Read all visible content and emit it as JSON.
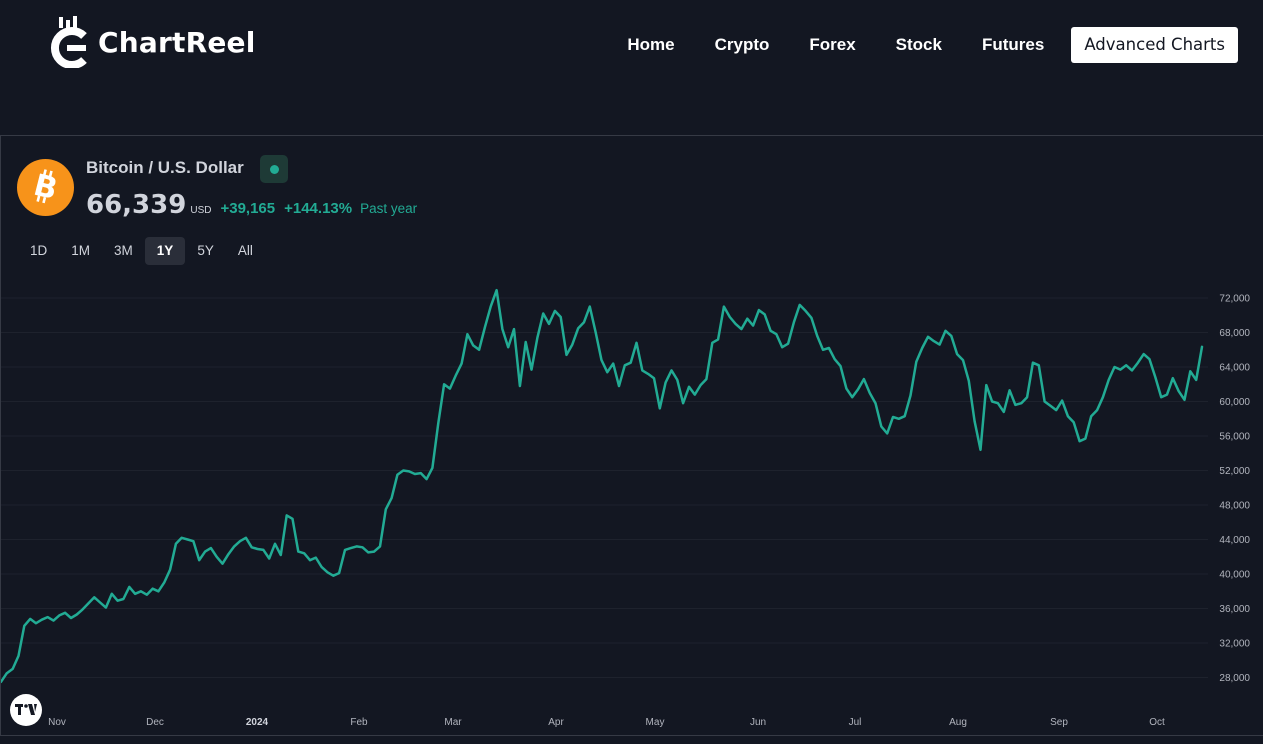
{
  "header": {
    "logo_text": "ChartReel",
    "nav": [
      {
        "label": "Home"
      },
      {
        "label": "Crypto"
      },
      {
        "label": "Forex"
      },
      {
        "label": "Stock"
      },
      {
        "label": "Futures"
      }
    ],
    "cta_label": "Advanced Charts"
  },
  "widget": {
    "symbol_title": "Bitcoin / U.S. Dollar",
    "coin_icon": "bitcoin-icon",
    "status": "market-open",
    "price": "66,339",
    "currency": "USD",
    "change": "+39,165",
    "change_pct": "+144.13%",
    "period": "Past year",
    "ranges": [
      {
        "label": "1D",
        "active": false
      },
      {
        "label": "1M",
        "active": false
      },
      {
        "label": "3M",
        "active": false
      },
      {
        "label": "1Y",
        "active": true
      },
      {
        "label": "5Y",
        "active": false
      },
      {
        "label": "All",
        "active": false
      }
    ],
    "accent_color": "#22ab94",
    "background_color": "#131722"
  },
  "chart_data": {
    "type": "line",
    "series": [
      {
        "values": [
          27500,
          28500,
          29000,
          30500,
          34000,
          34800,
          34300,
          34700,
          35000,
          34600,
          35200,
          35500,
          34900,
          35300,
          35900,
          36600,
          37300,
          36700,
          36100,
          37700,
          36900,
          37100,
          38500,
          37700,
          38000,
          37600,
          38300,
          38000,
          39000,
          40500,
          43500,
          44200,
          44000,
          43800,
          41600,
          42600,
          43000,
          42000,
          41200,
          42300,
          43200,
          43800,
          44200,
          43100,
          42900,
          42800,
          41800,
          43500,
          42200,
          46800,
          46400,
          42600,
          42400,
          41600,
          41900,
          40800,
          40200,
          39800,
          40100,
          42800,
          43000,
          43200,
          43100,
          42500,
          42600,
          43200,
          47500,
          48800,
          51500,
          52000,
          51900,
          51600,
          51700,
          51000,
          52300,
          57500,
          62000,
          61500,
          63000,
          64400,
          67800,
          66500,
          66000,
          68600,
          71000,
          72900,
          68400,
          66300,
          68400,
          61800,
          66900,
          63700,
          67400,
          70200,
          69000,
          70500,
          69800,
          65400,
          66600,
          68500,
          69200,
          71000,
          68000,
          64800,
          63400,
          64400,
          61800,
          64200,
          64500,
          66800,
          63600,
          63200,
          62700,
          59200,
          62200,
          63600,
          62500,
          59800,
          61700,
          60800,
          61900,
          62600,
          66800,
          67200,
          71000,
          69800,
          69000,
          68400,
          69600,
          68800,
          70600,
          70100,
          68200,
          67800,
          66300,
          66700,
          69200,
          71200,
          70500,
          69700,
          67600,
          66000,
          66200,
          64900,
          64100,
          61500,
          60500,
          61400,
          62600,
          61000,
          59800,
          57100,
          56300,
          58200,
          58000,
          58300,
          60700,
          64600,
          66200,
          67500,
          67000,
          66600,
          68200,
          67600,
          65500,
          64800,
          62400,
          57700,
          54400,
          61900,
          60000,
          59800,
          58800,
          61300,
          59600,
          59800,
          60500,
          64500,
          64200,
          60000,
          59500,
          59000,
          60100,
          58300,
          57600,
          55400,
          55700,
          58300,
          59000,
          60500,
          62500,
          64000,
          63700,
          64200,
          63600,
          64500,
          65500,
          64900,
          62800,
          60500,
          60800,
          62700,
          61200,
          60200,
          63500,
          62500,
          66339
        ]
      }
    ],
    "x_tick_labels": [
      "Nov",
      "Dec",
      "2024",
      "Feb",
      "Mar",
      "Apr",
      "May",
      "Jun",
      "Jul",
      "Aug",
      "Sep",
      "Oct"
    ],
    "y_tick_labels": [
      "72,000",
      "68,000",
      "64,000",
      "60,000",
      "56,000",
      "52,000",
      "48,000",
      "44,000",
      "40,000",
      "36,000",
      "32,000",
      "28,000"
    ],
    "ylim": [
      25200,
      74000
    ],
    "grid": true,
    "line_color": "#22ab94"
  }
}
